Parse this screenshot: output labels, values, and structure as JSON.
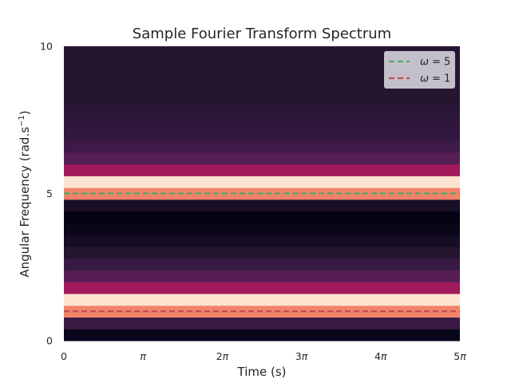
{
  "chart_data": {
    "type": "heatmap",
    "title": "Sample Fourier Transform Spectrum",
    "xlabel": "Time (s)",
    "ylabel_main": "Angular Frequency (rad.s",
    "ylabel_sup": "−1",
    "ylabel_close": ")",
    "xlim": [
      0,
      5
    ],
    "ylim": [
      0,
      10
    ],
    "xtick_labels": [
      "0",
      "π",
      "2π",
      "3π",
      "4π",
      "5π"
    ],
    "xtick_values": [
      0,
      1,
      2,
      3,
      4,
      5
    ],
    "ytick_labels": [
      "0",
      "5",
      "10"
    ],
    "ytick_values": [
      0,
      5,
      10
    ],
    "bins": [
      {
        "y0": 0.0,
        "y1": 0.4,
        "color": "#08061b"
      },
      {
        "y0": 0.4,
        "y1": 0.8,
        "color": "#3a1a45"
      },
      {
        "y0": 0.8,
        "y1": 1.2,
        "color": "#f0836a"
      },
      {
        "y0": 1.2,
        "y1": 1.6,
        "color": "#fbe3d0"
      },
      {
        "y0": 1.6,
        "y1": 2.0,
        "color": "#a11a5b"
      },
      {
        "y0": 2.0,
        "y1": 2.4,
        "color": "#561e55"
      },
      {
        "y0": 2.4,
        "y1": 2.8,
        "color": "#361a42"
      },
      {
        "y0": 2.8,
        "y1": 3.2,
        "color": "#23142f"
      },
      {
        "y0": 3.2,
        "y1": 3.6,
        "color": "#150d22"
      },
      {
        "y0": 3.6,
        "y1": 4.0,
        "color": "#0b0719"
      },
      {
        "y0": 4.0,
        "y1": 4.4,
        "color": "#050313"
      },
      {
        "y0": 4.4,
        "y1": 4.8,
        "color": "#1a1026"
      },
      {
        "y0": 4.8,
        "y1": 5.2,
        "color": "#f0836a"
      },
      {
        "y0": 5.2,
        "y1": 5.6,
        "color": "#fbe3d0"
      },
      {
        "y0": 5.6,
        "y1": 6.0,
        "color": "#a11a5b"
      },
      {
        "y0": 6.0,
        "y1": 6.4,
        "color": "#551e54"
      },
      {
        "y0": 6.4,
        "y1": 6.8,
        "color": "#3d1a48"
      },
      {
        "y0": 6.8,
        "y1": 7.2,
        "color": "#331840"
      },
      {
        "y0": 7.2,
        "y1": 7.6,
        "color": "#2f173c"
      },
      {
        "y0": 7.6,
        "y1": 8.0,
        "color": "#2c1638"
      },
      {
        "y0": 8.0,
        "y1": 10.0,
        "color": "#261531"
      }
    ],
    "lines": [
      {
        "name": "ω = 5",
        "sym": "ω",
        "eq": " = 5",
        "y": 5,
        "color": "#55a868",
        "style": "dashed"
      },
      {
        "name": "ω = 1",
        "sym": "ω",
        "eq": " = 1",
        "y": 1,
        "color": "#c44e52",
        "style": "dashed"
      }
    ],
    "legend": "top-right",
    "grid": false
  }
}
